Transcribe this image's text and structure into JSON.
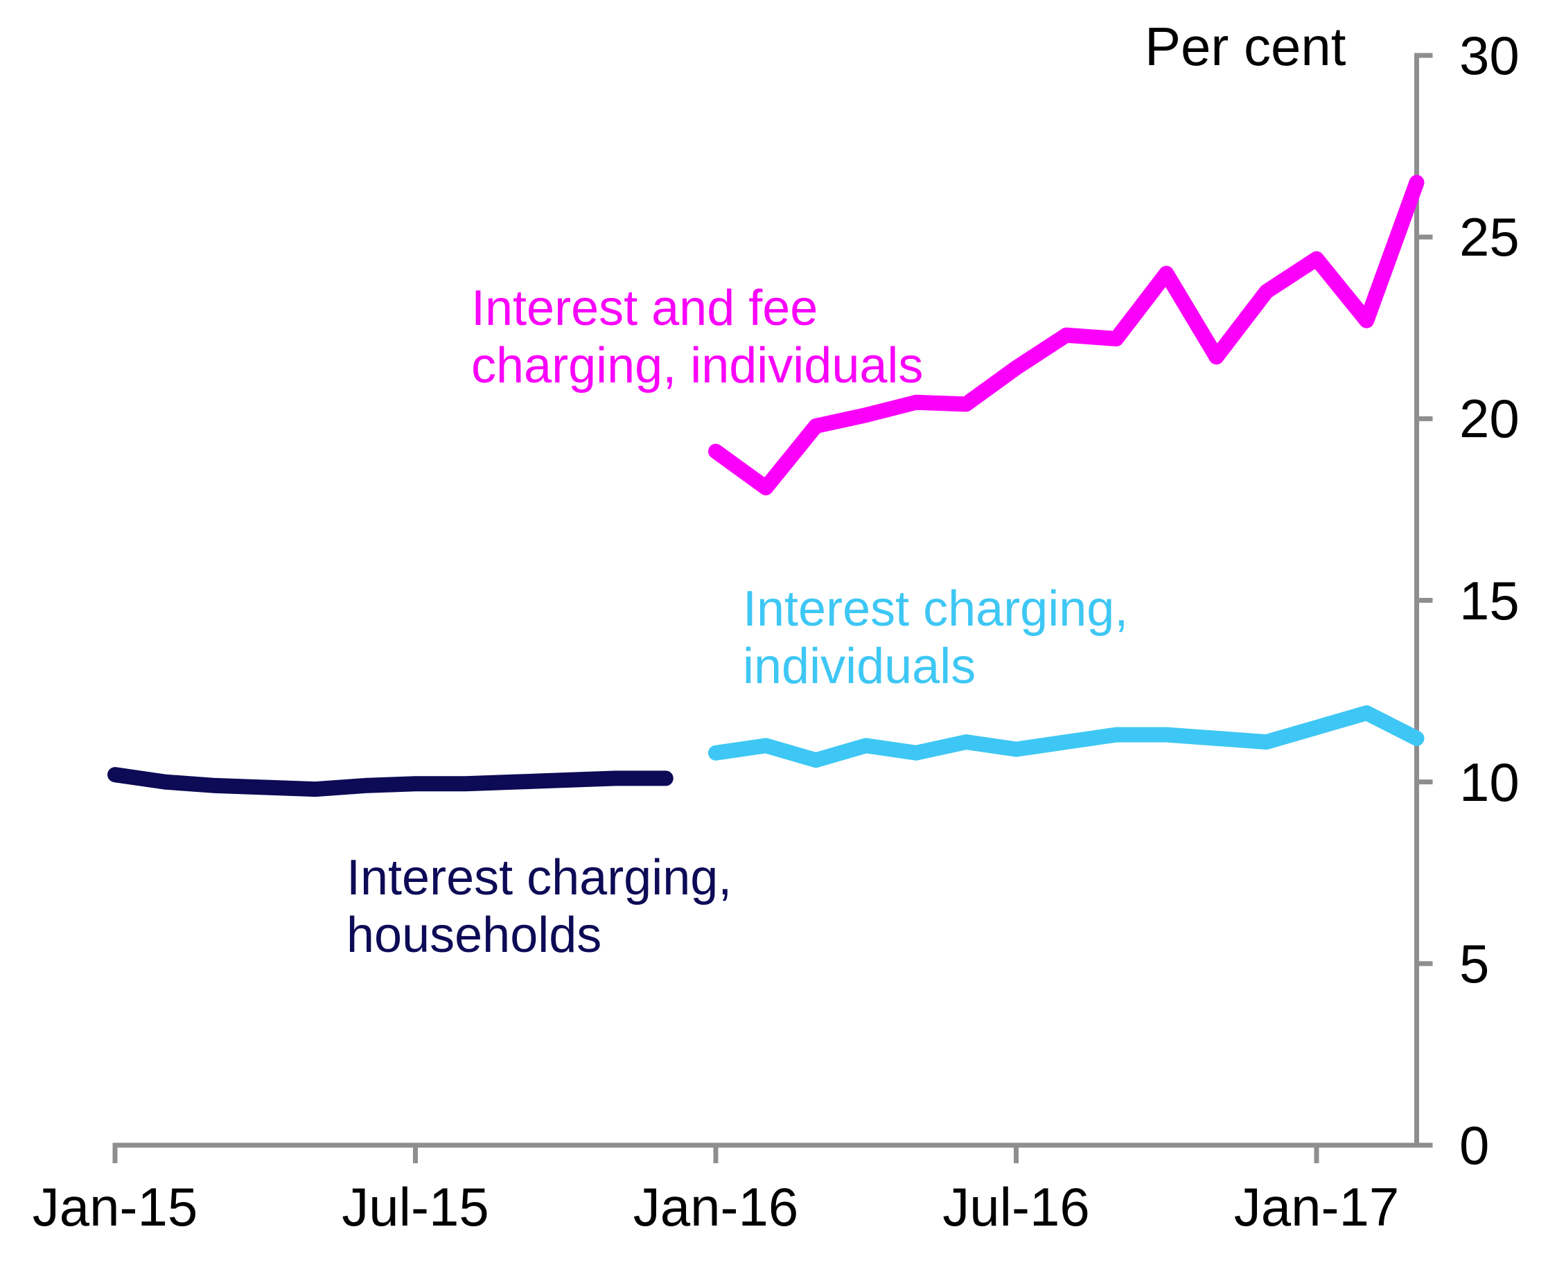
{
  "background": "#FFFFFF",
  "axis_color": "#8E8E8E",
  "text_color": "#000000",
  "chart_data": {
    "type": "line",
    "title": "",
    "ylabel": "Per cent",
    "xlabel": "",
    "grid": false,
    "legend_position": "inline-labels",
    "ylim": [
      0,
      30
    ],
    "y_ticks": [
      0,
      5,
      10,
      15,
      20,
      25,
      30
    ],
    "x_tick_labels": [
      "Jan-15",
      "Jul-15",
      "Jan-16",
      "Jul-16",
      "Jan-17"
    ],
    "x_tick_month_index": [
      0,
      6,
      12,
      18,
      24
    ],
    "x_range_months": [
      "Jan-15",
      "Mar-17"
    ],
    "series": [
      {
        "name": "Interest charging, households",
        "label_line1": "Interest charging,",
        "label_line2": "households",
        "color": "#0D0B56",
        "start_month_index": 0,
        "months": [
          "Jan-15",
          "Feb-15",
          "Mar-15",
          "Apr-15",
          "May-15",
          "Jun-15",
          "Jul-15",
          "Aug-15",
          "Sep-15",
          "Oct-15",
          "Nov-15",
          "Dec-15"
        ],
        "values": [
          10.2,
          10.0,
          9.9,
          9.85,
          9.8,
          9.9,
          9.95,
          9.95,
          10.0,
          10.05,
          10.1,
          10.1
        ]
      },
      {
        "name": "Interest charging, individuals",
        "label_line1": "Interest charging,",
        "label_line2": "individuals",
        "color": "#3EC7F4",
        "start_month_index": 12,
        "months": [
          "Jan-16",
          "Feb-16",
          "Mar-16",
          "Apr-16",
          "May-16",
          "Jun-16",
          "Jul-16",
          "Aug-16",
          "Sep-16",
          "Oct-16",
          "Nov-16",
          "Dec-16",
          "Jan-17",
          "Feb-17",
          "Mar-17"
        ],
        "values": [
          10.8,
          11.0,
          10.6,
          11.0,
          10.8,
          11.1,
          10.9,
          11.1,
          11.3,
          11.3,
          11.2,
          11.1,
          11.5,
          11.9,
          11.2
        ]
      },
      {
        "name": "Interest and fee charging, individuals",
        "label_line1": "Interest and fee",
        "label_line2": "charging, individuals",
        "color": "#FA00FA",
        "start_month_index": 12,
        "months": [
          "Jan-16",
          "Feb-16",
          "Mar-16",
          "Apr-16",
          "May-16",
          "Jun-16",
          "Jul-16",
          "Aug-16",
          "Sep-16",
          "Oct-16",
          "Nov-16",
          "Dec-16",
          "Jan-17",
          "Feb-17",
          "Mar-17"
        ],
        "values": [
          19.1,
          18.1,
          19.8,
          20.1,
          20.45,
          20.4,
          21.4,
          22.3,
          22.2,
          24.0,
          21.7,
          23.5,
          24.4,
          22.7,
          26.5
        ]
      }
    ]
  }
}
